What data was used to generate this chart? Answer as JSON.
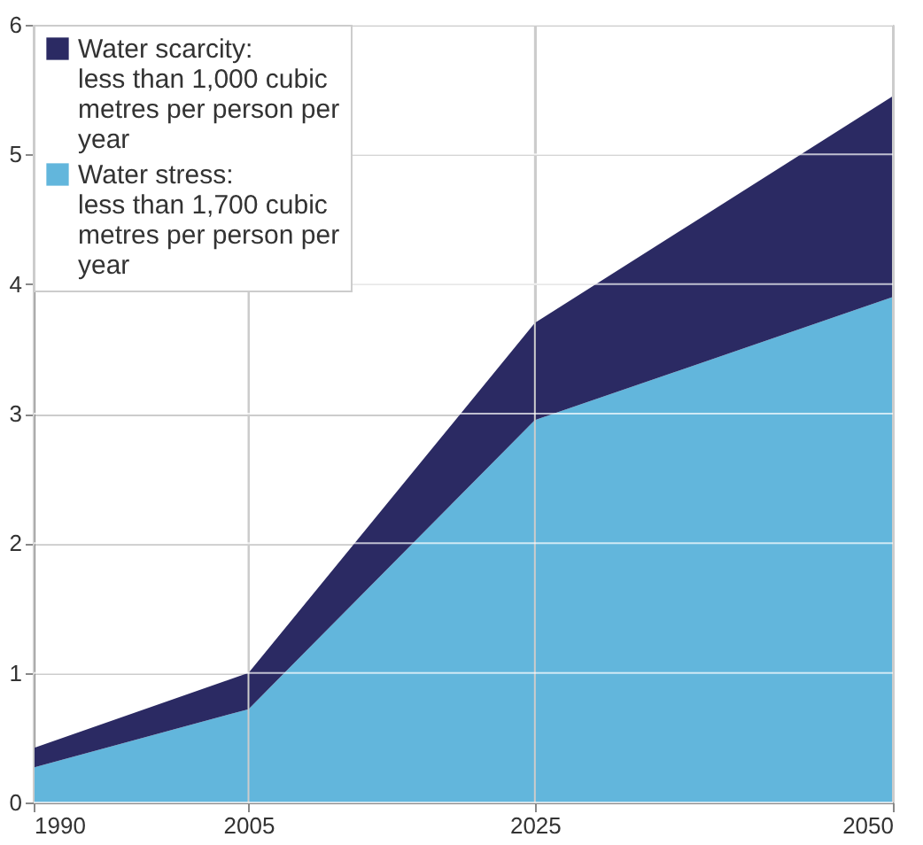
{
  "chart_data": {
    "type": "area",
    "stacked": true,
    "x": [
      1990,
      2005,
      2025,
      2050
    ],
    "series": [
      {
        "name": "Water stress: less than 1,700 cubic metres per person per year",
        "color": "#62b6dc",
        "values": [
          0.27,
          0.72,
          2.95,
          3.9
        ]
      },
      {
        "name": "Water scarcity: less than 1,000 cubic metres per person per year",
        "color": "#2b2a63",
        "values": [
          0.15,
          0.28,
          0.75,
          1.55
        ]
      }
    ],
    "xlim": [
      1990,
      2050
    ],
    "xticks": [
      1990,
      2005,
      2025,
      2050
    ],
    "ylim": [
      0,
      6
    ],
    "yticks": [
      0,
      1,
      2,
      3,
      4,
      5,
      6
    ],
    "grid": true,
    "legend": "top left"
  }
}
